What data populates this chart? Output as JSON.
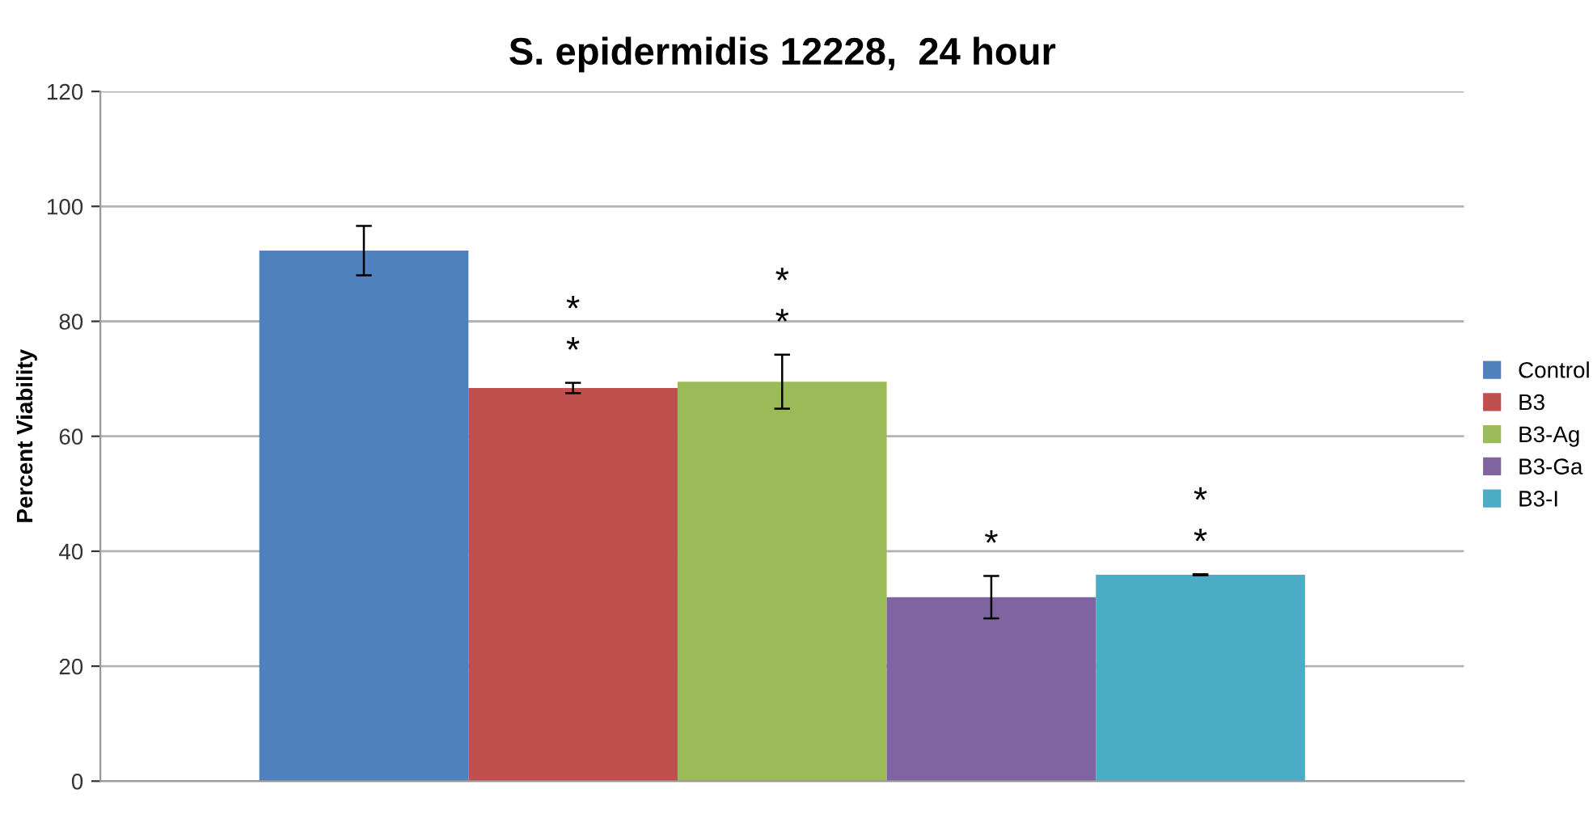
{
  "chart_data": {
    "type": "bar",
    "title": "S. epidermidis 12228,  24 hour",
    "ylabel": "Percent Viability",
    "categories": [
      null
    ],
    "series": [
      {
        "name": "Control",
        "color": "#4f81bd",
        "values": [
          92.3
        ],
        "errors": [
          4.3
        ]
      },
      {
        "name": "B3",
        "color": "#c0504d",
        "values": [
          68.4
        ],
        "errors": [
          0.9
        ]
      },
      {
        "name": "B3-Ag",
        "color": "#9bbb59",
        "values": [
          69.5
        ],
        "errors": [
          4.7
        ]
      },
      {
        "name": "B3-Ga",
        "color": "#8064a2",
        "values": [
          32.0
        ],
        "errors": [
          3.7
        ]
      },
      {
        "name": "B3-I",
        "color": "#4bacc6",
        "values": [
          35.9
        ],
        "errors": [
          0.1
        ]
      }
    ],
    "annotations": [
      null,
      "*\n*",
      "*\n*",
      "*",
      "*\n*"
    ],
    "ylim": [
      0,
      120
    ],
    "yticks": [
      0,
      20,
      40,
      60,
      80,
      100,
      120
    ],
    "grid": "y",
    "legend": "right"
  }
}
